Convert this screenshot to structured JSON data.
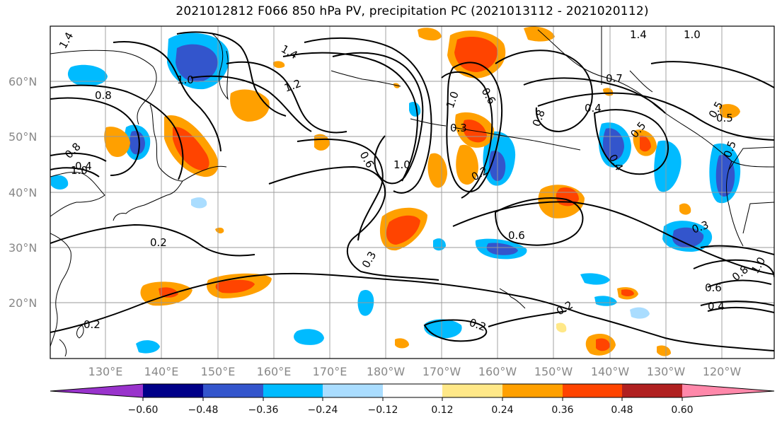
{
  "title": "2021012812 F066 850 hPa PV, precipitation PC (2021013112 - 2021020112)",
  "lat_labels": [
    "60°N",
    "50°N",
    "40°N",
    "30°N",
    "20°N"
  ],
  "lon_labels": [
    "130°E",
    "140°E",
    "150°E",
    "160°E",
    "170°E",
    "180°W",
    "170°W",
    "160°W",
    "150°W",
    "140°W",
    "130°W",
    "120°W"
  ],
  "colorbar": {
    "ticks": [
      "−0.60",
      "−0.48",
      "−0.36",
      "−0.24",
      "−0.12",
      "0.12",
      "0.24",
      "0.36",
      "0.48",
      "0.60"
    ],
    "colors": [
      "#9933cc",
      "#000088",
      "#3355cc",
      "#00bbff",
      "#aaddff",
      "#ffffff",
      "#ffe888",
      "#ffa000",
      "#ff4400",
      "#b02020",
      "#ff88aa"
    ]
  },
  "contour_labels": [
    "1.4",
    "1.0",
    "1.0",
    "0.8",
    "0.8",
    "0.4",
    "1.2",
    "1.4",
    "0.6",
    "0.3",
    "0.2",
    "1.0",
    "0.3",
    "0.2",
    "0.6",
    "0.4",
    "0.7",
    "0.8",
    "0.5",
    "0.4",
    "0.5",
    "0.5",
    "1.0",
    "0.6",
    "0.2",
    "0.3",
    "0.2",
    "0.2",
    "0.6",
    "0.4",
    "0.8",
    "1.0",
    "0.5",
    "1.4",
    "1.0"
  ],
  "colors": {
    "contour": "#000000",
    "coastline": "#000000",
    "grid": "#999999",
    "tick_label": "#888888"
  }
}
